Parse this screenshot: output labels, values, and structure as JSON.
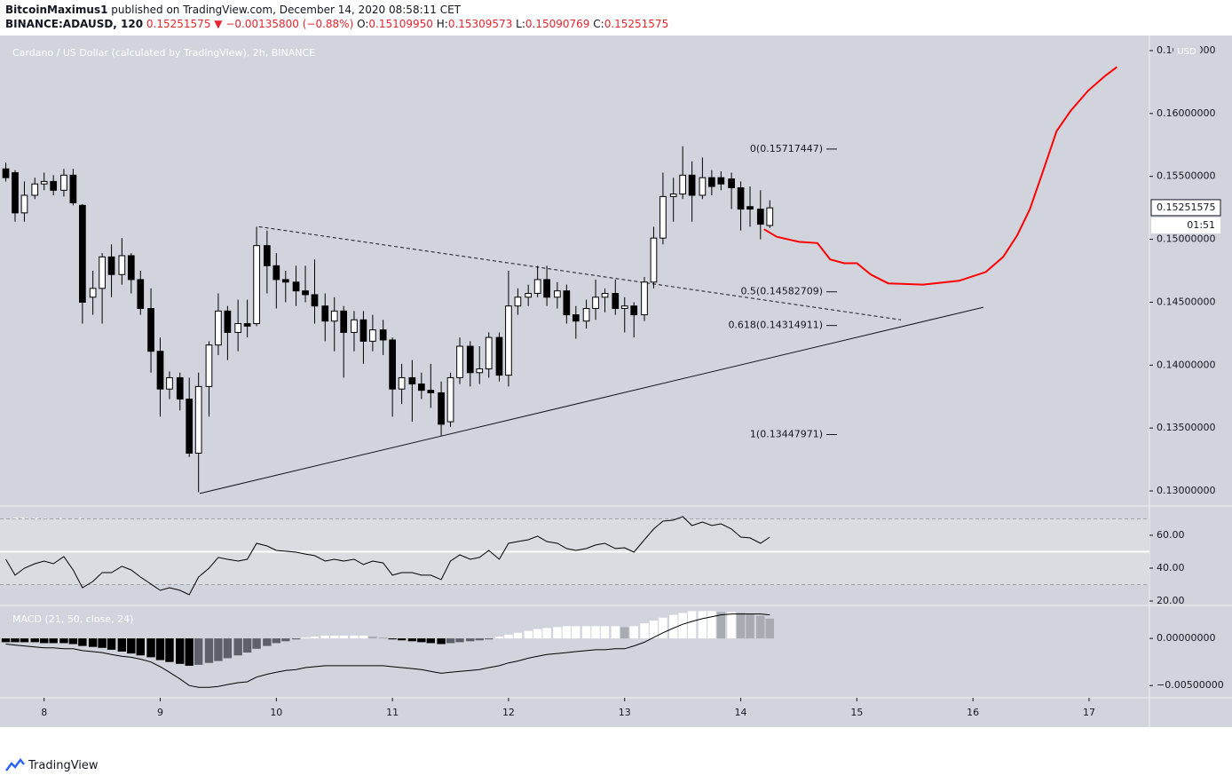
{
  "header": {
    "author": "BitcoinMaximus1",
    "published": "published on TradingView.com, December 14, 2020 08:58:11 CET",
    "symbol": "BINANCE:ADAUSD, 120",
    "price": "0.15251575",
    "change": "▼ −0.00135800 (−0.88%)",
    "ohlc": [
      {
        "label": "O:",
        "value": "0.15109950"
      },
      {
        "label": "H:",
        "value": "0.15309573"
      },
      {
        "label": "L:",
        "value": "0.15090769"
      },
      {
        "label": "C:",
        "value": "0.15251575"
      }
    ]
  },
  "chart_data": {
    "type": "candlestick",
    "title": "Cardano / US Dollar (calculated by TradingView), 2h, BINANCE",
    "currency": "USD",
    "xlim": [
      7.62,
      17.52
    ],
    "xticks": [
      8,
      9,
      10,
      11,
      12,
      13,
      14,
      15,
      16,
      17
    ],
    "ylim": [
      0.1288,
      0.1662
    ],
    "yticks": [
      {
        "value": 0.13,
        "label": "0.13000000"
      },
      {
        "value": 0.135,
        "label": "0.13500000"
      },
      {
        "value": 0.14,
        "label": "0.14000000"
      },
      {
        "value": 0.145,
        "label": "0.14500000"
      },
      {
        "value": 0.15,
        "label": "0.15000000"
      },
      {
        "value": 0.155,
        "label": "0.15500000"
      },
      {
        "value": 0.16,
        "label": "0.16000000"
      },
      {
        "value": 0.165,
        "label": "0.16500000"
      }
    ],
    "last_price": 0.15251575,
    "countdown": "01:51",
    "up_color": "#ffffff",
    "down_color": "#000000",
    "x": [
      7.67,
      7.75,
      7.83,
      7.92,
      8,
      8.08,
      8.17,
      8.25,
      8.33,
      8.42,
      8.5,
      8.58,
      8.67,
      8.75,
      8.83,
      8.92,
      9,
      9.08,
      9.17,
      9.25,
      9.33,
      9.42,
      9.5,
      9.58,
      9.67,
      9.75,
      9.83,
      9.92,
      10,
      10.08,
      10.17,
      10.25,
      10.33,
      10.42,
      10.5,
      10.58,
      10.67,
      10.75,
      10.83,
      10.92,
      11,
      11.08,
      11.17,
      11.25,
      11.33,
      11.42,
      11.5,
      11.58,
      11.67,
      11.75,
      11.83,
      11.92,
      12,
      12.08,
      12.17,
      12.25,
      12.33,
      12.42,
      12.5,
      12.58,
      12.67,
      12.75,
      12.83,
      12.92,
      13,
      13.08,
      13.17,
      13.25,
      13.33,
      13.42,
      13.5,
      13.58,
      13.67,
      13.75,
      13.83,
      13.92,
      14,
      14.08,
      14.17,
      14.25
    ],
    "candles": [
      [
        0.1556,
        0.1561,
        0.1546,
        0.1549
      ],
      [
        0.1553,
        0.1555,
        0.1514,
        0.1521
      ],
      [
        0.1521,
        0.1546,
        0.1514,
        0.1535
      ],
      [
        0.1535,
        0.1549,
        0.1532,
        0.1544
      ],
      [
        0.1544,
        0.1553,
        0.1539,
        0.1546
      ],
      [
        0.1546,
        0.1551,
        0.1535,
        0.1539
      ],
      [
        0.1539,
        0.1556,
        0.1534,
        0.1551
      ],
      [
        0.1551,
        0.1556,
        0.1527,
        0.1529
      ],
      [
        0.1527,
        0.1528,
        0.1433,
        0.145
      ],
      [
        0.1454,
        0.1475,
        0.144,
        0.1461
      ],
      [
        0.1461,
        0.1489,
        0.1433,
        0.1486
      ],
      [
        0.1486,
        0.1496,
        0.1454,
        0.1472
      ],
      [
        0.1472,
        0.1501,
        0.1464,
        0.1487
      ],
      [
        0.1487,
        0.1489,
        0.1457,
        0.1468
      ],
      [
        0.1468,
        0.1475,
        0.144,
        0.1445
      ],
      [
        0.1445,
        0.1461,
        0.1394,
        0.1411
      ],
      [
        0.1411,
        0.1422,
        0.1359,
        0.1381
      ],
      [
        0.1381,
        0.1395,
        0.1373,
        0.139
      ],
      [
        0.139,
        0.1394,
        0.1364,
        0.1373
      ],
      [
        0.1373,
        0.139,
        0.1327,
        0.133
      ],
      [
        0.133,
        0.1394,
        0.1299,
        0.1383
      ],
      [
        0.1383,
        0.1419,
        0.1359,
        0.1416
      ],
      [
        0.1416,
        0.1457,
        0.1408,
        0.1443
      ],
      [
        0.1443,
        0.1447,
        0.1404,
        0.1426
      ],
      [
        0.1426,
        0.1452,
        0.1411,
        0.1433
      ],
      [
        0.1433,
        0.1452,
        0.1422,
        0.1431
      ],
      [
        0.1433,
        0.151,
        0.1431,
        0.1495
      ],
      [
        0.1495,
        0.1507,
        0.1457,
        0.1479
      ],
      [
        0.1479,
        0.1489,
        0.1445,
        0.1468
      ],
      [
        0.1468,
        0.1475,
        0.145,
        0.1466
      ],
      [
        0.1466,
        0.1479,
        0.1447,
        0.1459
      ],
      [
        0.1459,
        0.1479,
        0.145,
        0.1456
      ],
      [
        0.1456,
        0.1484,
        0.1433,
        0.1447
      ],
      [
        0.1447,
        0.1457,
        0.1419,
        0.1435
      ],
      [
        0.1435,
        0.1454,
        0.1411,
        0.1443
      ],
      [
        0.1443,
        0.1447,
        0.139,
        0.1426
      ],
      [
        0.1426,
        0.1443,
        0.1411,
        0.1436
      ],
      [
        0.1436,
        0.1443,
        0.1401,
        0.1419
      ],
      [
        0.1419,
        0.144,
        0.1411,
        0.1428
      ],
      [
        0.1428,
        0.1436,
        0.1408,
        0.142
      ],
      [
        0.142,
        0.1422,
        0.1359,
        0.1381
      ],
      [
        0.1381,
        0.1401,
        0.1369,
        0.139
      ],
      [
        0.139,
        0.1404,
        0.1355,
        0.1385
      ],
      [
        0.1385,
        0.1394,
        0.1373,
        0.138
      ],
      [
        0.138,
        0.1401,
        0.1366,
        0.1378
      ],
      [
        0.1378,
        0.1387,
        0.1344,
        0.1353
      ],
      [
        0.1355,
        0.1394,
        0.1351,
        0.139
      ],
      [
        0.139,
        0.1422,
        0.1385,
        0.1415
      ],
      [
        0.1415,
        0.1419,
        0.1383,
        0.1394
      ],
      [
        0.1394,
        0.1415,
        0.1385,
        0.1397
      ],
      [
        0.1397,
        0.1426,
        0.139,
        0.1422
      ],
      [
        0.1422,
        0.1426,
        0.1387,
        0.1392
      ],
      [
        0.1392,
        0.1475,
        0.1383,
        0.1447
      ],
      [
        0.1447,
        0.1461,
        0.144,
        0.1454
      ],
      [
        0.1454,
        0.1464,
        0.1447,
        0.1457
      ],
      [
        0.1457,
        0.1479,
        0.1454,
        0.1468
      ],
      [
        0.1468,
        0.1479,
        0.1447,
        0.1454
      ],
      [
        0.1454,
        0.1466,
        0.1445,
        0.1459
      ],
      [
        0.1459,
        0.1464,
        0.1433,
        0.144
      ],
      [
        0.144,
        0.1447,
        0.1421,
        0.1435
      ],
      [
        0.1435,
        0.1452,
        0.1429,
        0.1445
      ],
      [
        0.1445,
        0.1468,
        0.1436,
        0.1454
      ],
      [
        0.1454,
        0.1461,
        0.1442,
        0.1457
      ],
      [
        0.1457,
        0.1468,
        0.144,
        0.1445
      ],
      [
        0.1445,
        0.1454,
        0.1426,
        0.1447
      ],
      [
        0.1447,
        0.145,
        0.1422,
        0.144
      ],
      [
        0.144,
        0.147,
        0.1435,
        0.1466
      ],
      [
        0.1466,
        0.151,
        0.1461,
        0.1501
      ],
      [
        0.1501,
        0.1553,
        0.1496,
        0.1534
      ],
      [
        0.1534,
        0.1549,
        0.1514,
        0.1536
      ],
      [
        0.1536,
        0.1574,
        0.1532,
        0.1551
      ],
      [
        0.1551,
        0.1562,
        0.1514,
        0.1535
      ],
      [
        0.1535,
        0.1565,
        0.1532,
        0.1549
      ],
      [
        0.1549,
        0.1555,
        0.1535,
        0.1542
      ],
      [
        0.1549,
        0.1554,
        0.1539,
        0.1544
      ],
      [
        0.1548,
        0.1553,
        0.1524,
        0.1541
      ],
      [
        0.1541,
        0.1546,
        0.1507,
        0.1524
      ],
      [
        0.1526,
        0.1542,
        0.151,
        0.1524
      ],
      [
        0.1524,
        0.1539,
        0.15,
        0.1512
      ],
      [
        0.1511,
        0.1531,
        0.1509,
        0.1525
      ]
    ],
    "fib_levels": [
      {
        "label": "0(0.15717447)",
        "value": 0.15717447
      },
      {
        "label": "0.5(0.14582709)",
        "value": 0.14582709
      },
      {
        "label": "0.618(0.14314911)",
        "value": 0.14314911
      },
      {
        "label": "1(0.13447971)",
        "value": 0.13447971
      }
    ],
    "trendlines": [
      {
        "style": "dashed",
        "x": [
          9.85,
          15.38
        ],
        "y": [
          0.151,
          0.1436
        ]
      },
      {
        "style": "solid",
        "x": [
          9.34,
          16.09
        ],
        "y": [
          0.1298,
          0.1446
        ]
      }
    ],
    "projection": {
      "color": "#ff0000",
      "x": [
        14.2,
        14.31,
        14.5,
        14.66,
        14.77,
        14.89,
        15.0,
        15.12,
        15.27,
        15.57,
        15.88,
        16.11,
        16.26,
        16.38,
        16.49,
        16.61,
        16.72,
        16.84,
        16.99,
        17.14,
        17.24
      ],
      "y": [
        0.1508,
        0.1502,
        0.1498,
        0.1497,
        0.1484,
        0.1481,
        0.1481,
        0.1472,
        0.1465,
        0.1464,
        0.1467,
        0.1474,
        0.1486,
        0.1503,
        0.1524,
        0.1556,
        0.1586,
        0.1602,
        0.1618,
        0.163,
        0.1637
      ]
    },
    "rsi": {
      "label": "RSI (14, close)",
      "color": "#000000",
      "ylim": [
        17.3,
        77.8
      ],
      "yticks": [
        {
          "value": 60,
          "label": "60.00"
        },
        {
          "value": 40,
          "label": "40.00"
        },
        {
          "value": 20,
          "label": "20.00"
        }
      ],
      "bands": [
        70,
        30
      ],
      "hline": 50,
      "values": [
        45.4,
        35.7,
        40.0,
        42.7,
        44.3,
        42.7,
        47.0,
        38.9,
        28.1,
        31.9,
        37.3,
        37.3,
        41.1,
        38.9,
        34.6,
        30.3,
        26.5,
        28.1,
        26.5,
        23.8,
        34.6,
        40.0,
        46.5,
        45.4,
        44.3,
        45.4,
        55.1,
        53.5,
        50.8,
        50.3,
        49.7,
        48.6,
        47.6,
        44.3,
        45.4,
        44.3,
        45.4,
        42.2,
        44.3,
        43.2,
        35.7,
        37.3,
        37.3,
        35.7,
        35.7,
        33.0,
        44.3,
        48.1,
        45.4,
        46.5,
        50.8,
        45.4,
        55.1,
        56.2,
        57.3,
        59.5,
        56.2,
        55.1,
        51.9,
        50.8,
        51.9,
        54.1,
        55.1,
        51.9,
        52.4,
        49.7,
        57.3,
        63.8,
        68.6,
        69.2,
        71.4,
        65.9,
        68.1,
        65.9,
        67.0,
        63.8,
        58.9,
        58.4,
        55.1,
        58.9
      ]
    },
    "macd": {
      "label": "MACD (21, 50, close, 24)",
      "color": "#000000",
      "ylim": [
        -0.0063,
        0.0035
      ],
      "yticks": [
        {
          "value": 0,
          "label": "0.00000000"
        },
        {
          "value": -0.005,
          "label": "−0.00500000"
        }
      ],
      "histogram_colors": {
        "neg_grow": "#000000",
        "neg_fall": "#5d606b",
        "pos_grow": "#ffffff",
        "pos_fall": "#a9abb3"
      },
      "line": [
        -0.0006,
        -0.0007,
        -0.0008,
        -0.0009,
        -0.001,
        -0.001,
        -0.0011,
        -0.0011,
        -0.0013,
        -0.0014,
        -0.0015,
        -0.0017,
        -0.0019,
        -0.002,
        -0.0022,
        -0.0025,
        -0.003,
        -0.0036,
        -0.0043,
        -0.005,
        -0.0052,
        -0.0052,
        -0.0051,
        -0.0049,
        -0.0047,
        -0.0046,
        -0.0041,
        -0.0038,
        -0.0036,
        -0.0034,
        -0.0033,
        -0.0031,
        -0.003,
        -0.0029,
        -0.0029,
        -0.0029,
        -0.0029,
        -0.0029,
        -0.0029,
        -0.0029,
        -0.003,
        -0.0031,
        -0.0032,
        -0.0033,
        -0.0035,
        -0.0037,
        -0.0036,
        -0.0035,
        -0.0034,
        -0.0033,
        -0.0031,
        -0.0029,
        -0.0026,
        -0.0024,
        -0.0021,
        -0.0019,
        -0.0017,
        -0.0016,
        -0.0015,
        -0.0014,
        -0.0013,
        -0.0012,
        -0.0012,
        -0.0011,
        -0.0011,
        -0.0008,
        -0.0004,
        0.0001,
        0.0006,
        0.0011,
        0.0015,
        0.0018,
        0.0021,
        0.0023,
        0.0025,
        0.0026,
        0.0026,
        0.0026,
        0.0026,
        0.0025
      ],
      "histogram": [
        -0.0004,
        -0.0004,
        -0.0004,
        -0.0004,
        -0.0005,
        -0.0005,
        -0.0005,
        -0.0006,
        -0.0008,
        -0.0009,
        -0.001,
        -0.0012,
        -0.0014,
        -0.0016,
        -0.0018,
        -0.002,
        -0.0023,
        -0.0025,
        -0.0027,
        -0.0029,
        -0.0028,
        -0.0026,
        -0.0024,
        -0.0021,
        -0.0018,
        -0.0015,
        -0.0011,
        -0.0008,
        -0.0005,
        -0.0003,
        -0.0001,
        0.0001,
        0.0002,
        0.0003,
        0.0003,
        0.0003,
        0.0003,
        0.0003,
        0.0002,
        0.0001,
        -0.0001,
        -0.0002,
        -0.0003,
        -0.0004,
        -0.0005,
        -0.0006,
        -0.0005,
        -0.0004,
        -0.0003,
        -0.0002,
        -0.0001,
        0.0002,
        0.0004,
        0.0006,
        0.0008,
        0.001,
        0.0011,
        0.0012,
        0.0013,
        0.0013,
        0.0013,
        0.0013,
        0.0013,
        0.0013,
        0.0012,
        0.0013,
        0.0016,
        0.0019,
        0.0022,
        0.0025,
        0.0027,
        0.0029,
        0.0029,
        0.0029,
        0.0028,
        0.0028,
        0.0027,
        0.0026,
        0.0024,
        0.0021
      ]
    }
  },
  "footer": {
    "brand": "TradingView"
  }
}
